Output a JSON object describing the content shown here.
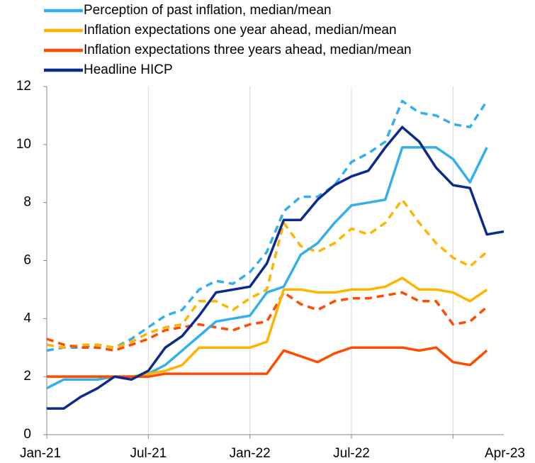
{
  "chart_data": {
    "type": "line",
    "categories": [
      "Jan-21",
      null,
      null,
      null,
      null,
      null,
      "Jul-21",
      null,
      null,
      null,
      null,
      null,
      "Jan-22",
      null,
      null,
      null,
      null,
      null,
      "Jul-22",
      null,
      null,
      null,
      null,
      null,
      null,
      null,
      null,
      "Apr-23"
    ],
    "series": [
      {
        "name": "Perception of past inflation, median/mean",
        "color": "#33b0ea",
        "values": [
          1.6,
          1.9,
          1.9,
          1.9,
          2.0,
          2.0,
          2.1,
          2.4,
          2.9,
          3.4,
          3.9,
          4.0,
          4.1,
          4.9,
          5.1,
          6.2,
          6.6,
          7.3,
          7.9,
          8.0,
          8.1,
          9.9,
          9.9,
          9.9,
          9.5,
          8.7,
          9.9,
          null
        ],
        "mean": [
          2.9,
          3.0,
          3.0,
          3.1,
          3.0,
          3.3,
          3.7,
          4.1,
          4.3,
          5.0,
          5.3,
          5.2,
          5.6,
          6.3,
          7.7,
          8.2,
          8.2,
          8.6,
          9.4,
          9.7,
          10.1,
          11.5,
          11.1,
          11.0,
          10.7,
          10.6,
          11.5,
          null
        ]
      },
      {
        "name": "Inflation expectations one year ahead, median/mean",
        "color": "#ffb400",
        "values": [
          2.0,
          2.0,
          2.0,
          2.0,
          2.0,
          2.0,
          2.1,
          2.2,
          2.4,
          3.0,
          3.0,
          3.0,
          3.0,
          3.2,
          5.0,
          5.0,
          4.9,
          4.9,
          5.0,
          5.0,
          5.1,
          5.4,
          5.0,
          5.0,
          4.9,
          4.6,
          5.0,
          null
        ],
        "mean": [
          3.1,
          3.0,
          3.1,
          3.1,
          3.0,
          3.2,
          3.5,
          3.7,
          3.8,
          4.6,
          4.6,
          4.3,
          4.7,
          5.0,
          7.3,
          6.5,
          6.3,
          6.6,
          7.1,
          6.9,
          7.3,
          8.1,
          7.3,
          6.6,
          6.1,
          5.8,
          6.3,
          null
        ]
      },
      {
        "name": "Inflation expectations three years ahead, median/mean",
        "color": "#ff4b00",
        "values": [
          2.0,
          2.0,
          2.0,
          2.0,
          2.0,
          2.0,
          2.0,
          2.1,
          2.1,
          2.1,
          2.1,
          2.1,
          2.1,
          2.1,
          2.9,
          2.7,
          2.5,
          2.8,
          3.0,
          3.0,
          3.0,
          3.0,
          2.9,
          3.0,
          2.5,
          2.4,
          2.9,
          null
        ],
        "mean": [
          3.3,
          3.1,
          3.0,
          3.0,
          2.9,
          3.1,
          3.3,
          3.6,
          3.7,
          3.8,
          3.7,
          3.6,
          3.8,
          3.9,
          4.9,
          4.5,
          4.3,
          4.6,
          4.7,
          4.7,
          4.8,
          4.9,
          4.6,
          4.6,
          3.8,
          3.9,
          4.4,
          null
        ]
      },
      {
        "name": "Headline HICP",
        "color": "#0a2a8c",
        "values": [
          0.9,
          0.9,
          1.3,
          1.6,
          2.0,
          1.9,
          2.2,
          3.0,
          3.4,
          4.1,
          4.9,
          5.0,
          5.1,
          5.9,
          7.4,
          7.4,
          8.1,
          8.6,
          8.9,
          9.1,
          9.9,
          10.6,
          10.1,
          9.2,
          8.6,
          8.5,
          6.9,
          7.0
        ]
      }
    ],
    "ylim": [
      0,
      12
    ],
    "yticks": [
      0,
      2,
      4,
      6,
      8,
      10,
      12
    ],
    "xgrid": true,
    "legend": "top-left"
  }
}
